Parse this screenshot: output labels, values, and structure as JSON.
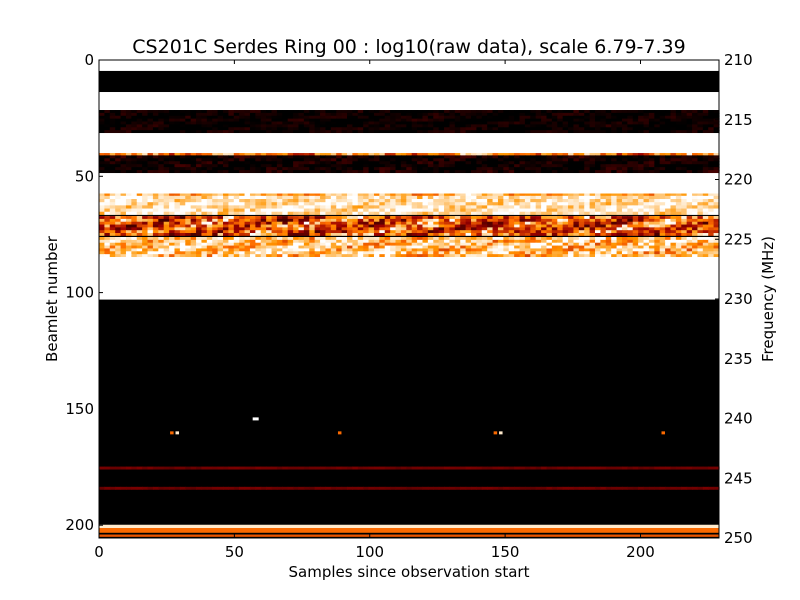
{
  "chart_data": {
    "type": "heatmap",
    "title": "CS201C Serdes Ring 00 : log10(raw data), scale 6.79-7.39",
    "xlabel": "Samples since observation start",
    "ylabel": "Beamlet number",
    "y2label": "Frequency (MHz)",
    "xlim": [
      0,
      229
    ],
    "ylim": [
      0,
      205.5
    ],
    "y2lim": [
      210,
      250
    ],
    "xticks": [
      "0",
      "50",
      "100",
      "150",
      "200"
    ],
    "xtick_values": [
      0,
      50,
      100,
      150,
      200
    ],
    "yticks": [
      "0",
      "50",
      "100",
      "150",
      "200"
    ],
    "ytick_values": [
      0,
      50,
      100,
      150,
      200
    ],
    "y2ticks": [
      "210",
      "215",
      "220",
      "225",
      "230",
      "235",
      "240",
      "245",
      "250"
    ],
    "y2tick_values": [
      210,
      215,
      220,
      225,
      230,
      235,
      240,
      245,
      250
    ],
    "colormap": "gist_heat",
    "scale": [
      6.79,
      7.39
    ],
    "bands": [
      {
        "from": 0,
        "to": 4.7,
        "level": 1.0,
        "noise": 0
      },
      {
        "from": 4.7,
        "to": 13.8,
        "level": 0.0,
        "noise": 0
      },
      {
        "from": 13.8,
        "to": 21.5,
        "level": 1.0,
        "noise": 0
      },
      {
        "from": 21.5,
        "to": 31.4,
        "level": 0.02,
        "noise": 0.08
      },
      {
        "from": 31.4,
        "to": 40.0,
        "level": 1.0,
        "noise": 0
      },
      {
        "from": 40.0,
        "to": 41.0,
        "level": 0.7,
        "noise": 0.2
      },
      {
        "from": 41.0,
        "to": 48.6,
        "level": 0.03,
        "noise": 0.1
      },
      {
        "from": 48.6,
        "to": 57.4,
        "level": 1.0,
        "noise": 0
      },
      {
        "from": 57.4,
        "to": 58.4,
        "level": 0.8,
        "noise": 0.15
      },
      {
        "from": 58.4,
        "to": 66.6,
        "level": 0.93,
        "noise": 0.12
      },
      {
        "from": 66.6,
        "to": 67.1,
        "level": 0.0,
        "noise": 0
      },
      {
        "from": 67.1,
        "to": 75.6,
        "level": 0.6,
        "noise": 0.3
      },
      {
        "from": 75.6,
        "to": 76.1,
        "level": 0.0,
        "noise": 0
      },
      {
        "from": 76.1,
        "to": 84.7,
        "level": 0.85,
        "noise": 0.2
      },
      {
        "from": 84.7,
        "to": 103.0,
        "level": 1.0,
        "noise": 0
      },
      {
        "from": 103.0,
        "to": 205.5,
        "level": 0.0,
        "noise": 0
      },
      {
        "from": 174.8,
        "to": 175.8,
        "level": 0.28,
        "noise": 0.03
      },
      {
        "from": 183.5,
        "to": 184.5,
        "level": 0.28,
        "noise": 0.03
      },
      {
        "from": 199.8,
        "to": 201.2,
        "level": 0.95,
        "noise": 0
      },
      {
        "from": 201.2,
        "to": 203.3,
        "level": 0.65,
        "noise": 0
      },
      {
        "from": 203.3,
        "to": 204.0,
        "level": 0.0,
        "noise": 0
      },
      {
        "from": 204.0,
        "to": 205.0,
        "level": 0.6,
        "noise": 0
      }
    ],
    "spots": [
      {
        "x": 27,
        "y": 160.3,
        "level": 0.65
      },
      {
        "x": 29,
        "y": 160.3,
        "level": 0.95
      },
      {
        "x": 57.5,
        "y": 154.3,
        "level": 1.0
      },
      {
        "x": 89,
        "y": 160.3,
        "level": 0.65
      },
      {
        "x": 146.5,
        "y": 160.3,
        "level": 0.65
      },
      {
        "x": 148.5,
        "y": 160.3,
        "level": 0.95
      },
      {
        "x": 208.5,
        "y": 160.3,
        "level": 0.65
      }
    ]
  }
}
